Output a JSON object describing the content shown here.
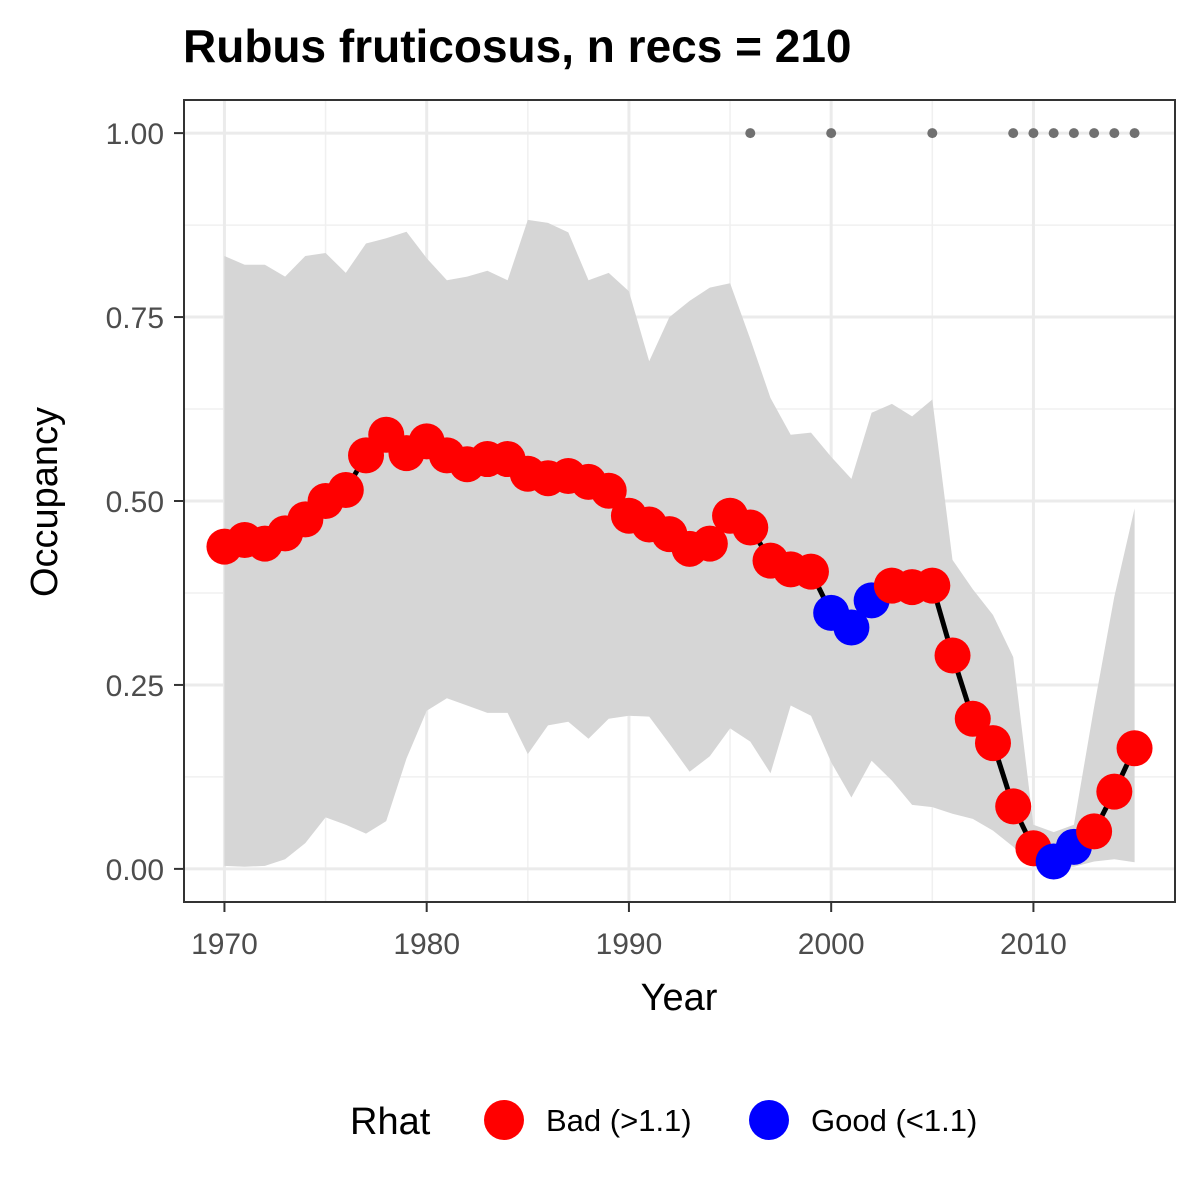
{
  "chart_data": {
    "type": "line",
    "title": "Rubus fruticosus, n recs = 210",
    "xlabel": "Year",
    "ylabel": "Occupancy",
    "xlim": [
      1968,
      2017
    ],
    "ylim": [
      -0.045,
      1.045
    ],
    "x_ticks": [
      1970,
      1980,
      1990,
      2000,
      2010
    ],
    "y_ticks": [
      0,
      0.25,
      0.5,
      0.75,
      1.0
    ],
    "y_tick_labels": [
      "0.00",
      "0.25",
      "0.50",
      "0.75",
      "1.00"
    ],
    "grid": true,
    "legend": {
      "title": "Rhat",
      "position": "bottom",
      "entries": [
        {
          "label": "Bad (>1.1)",
          "color": "#ff0000"
        },
        {
          "label": "Good (<1.1)",
          "color": "#0000ff"
        }
      ]
    },
    "colors": {
      "bad": "#ff0000",
      "good": "#0000ff",
      "line": "#000000",
      "ribbon": "#d6d6d6",
      "record": "#707070"
    },
    "series": [
      {
        "x": [
          1970,
          1971,
          1972,
          1973,
          1974,
          1975,
          1976,
          1977,
          1978,
          1979,
          1980,
          1981,
          1982,
          1983,
          1984,
          1985,
          1986,
          1987,
          1988,
          1989,
          1990,
          1991,
          1992,
          1993,
          1994,
          1995,
          1996,
          1997,
          1998,
          1999,
          2000,
          2001,
          2002,
          2003,
          2004,
          2005,
          2006,
          2007,
          2008,
          2009,
          2010,
          2011,
          2012,
          2013,
          2014,
          2015
        ],
        "values": [
          0.438,
          0.447,
          0.442,
          0.456,
          0.475,
          0.5,
          0.515,
          0.562,
          0.59,
          0.565,
          0.581,
          0.562,
          0.55,
          0.557,
          0.557,
          0.537,
          0.531,
          0.534,
          0.526,
          0.514,
          0.48,
          0.468,
          0.455,
          0.435,
          0.442,
          0.48,
          0.464,
          0.419,
          0.407,
          0.404,
          0.348,
          0.328,
          0.365,
          0.385,
          0.383,
          0.385,
          0.29,
          0.204,
          0.171,
          0.085,
          0.028,
          0.01,
          0.03,
          0.051,
          0.105,
          0.164
        ],
        "rhat": [
          "bad",
          "bad",
          "bad",
          "bad",
          "bad",
          "bad",
          "bad",
          "bad",
          "bad",
          "bad",
          "bad",
          "bad",
          "bad",
          "bad",
          "bad",
          "bad",
          "bad",
          "bad",
          "bad",
          "bad",
          "bad",
          "bad",
          "bad",
          "bad",
          "bad",
          "bad",
          "bad",
          "bad",
          "bad",
          "bad",
          "good",
          "good",
          "good",
          "bad",
          "bad",
          "bad",
          "bad",
          "bad",
          "bad",
          "bad",
          "bad",
          "good",
          "good",
          "bad",
          "bad",
          "bad"
        ],
        "upper": [
          0.833,
          0.821,
          0.821,
          0.805,
          0.833,
          0.837,
          0.81,
          0.85,
          0.857,
          0.866,
          0.83,
          0.8,
          0.805,
          0.813,
          0.8,
          0.882,
          0.878,
          0.865,
          0.8,
          0.81,
          0.785,
          0.69,
          0.75,
          0.772,
          0.79,
          0.796,
          0.72,
          0.64,
          0.59,
          0.593,
          0.56,
          0.53,
          0.62,
          0.632,
          0.615,
          0.638,
          0.42,
          0.38,
          0.345,
          0.288,
          0.06,
          0.05,
          0.06,
          0.22,
          0.37,
          0.49
        ],
        "lower": [
          0.004,
          0.003,
          0.004,
          0.013,
          0.035,
          0.07,
          0.06,
          0.048,
          0.065,
          0.15,
          0.215,
          0.232,
          0.222,
          0.212,
          0.212,
          0.156,
          0.195,
          0.2,
          0.177,
          0.204,
          0.208,
          0.207,
          0.17,
          0.132,
          0.153,
          0.191,
          0.173,
          0.13,
          0.222,
          0.208,
          0.145,
          0.097,
          0.147,
          0.12,
          0.087,
          0.084,
          0.075,
          0.068,
          0.052,
          0.03,
          0.003,
          0.003,
          0.003,
          0.01,
          0.013,
          0.009
        ]
      }
    ],
    "record_years": [
      1996,
      2000,
      2005,
      2009,
      2010,
      2011,
      2012,
      2013,
      2014,
      2015
    ],
    "record_y": 1.0
  }
}
